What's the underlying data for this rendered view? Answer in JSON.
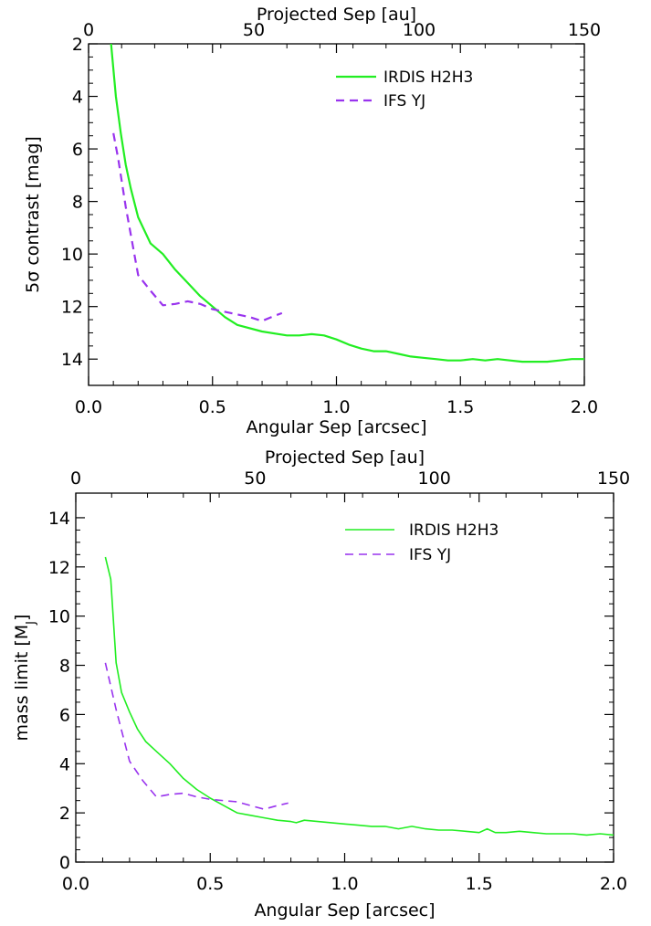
{
  "chart_data": [
    {
      "type": "line",
      "xlabel": "Angular Sep [arcsec]",
      "ylabel": "5σ contrast [mag]",
      "top_xlabel": "Projected Sep [au]",
      "xlim": [
        0.0,
        2.0
      ],
      "ylim": [
        2,
        15
      ],
      "y_inverted": true,
      "top_xlim": [
        0,
        150
      ],
      "x_ticks": [
        "0.0",
        "0.5",
        "1.0",
        "1.5",
        "2.0"
      ],
      "x_tick_values": [
        0.0,
        0.5,
        1.0,
        1.5,
        2.0
      ],
      "y_ticks": [
        "2",
        "4",
        "6",
        "8",
        "10",
        "12",
        "14"
      ],
      "y_tick_values": [
        2,
        4,
        6,
        8,
        10,
        12,
        14
      ],
      "top_ticks": [
        "0",
        "50",
        "100",
        "150"
      ],
      "top_tick_values": [
        0,
        50,
        100,
        150
      ],
      "legend_position": "top-right",
      "series": [
        {
          "name": "IRDIS H2H3",
          "color": "#22ee22",
          "dash": "solid",
          "x": [
            0.09,
            0.11,
            0.13,
            0.15,
            0.17,
            0.2,
            0.25,
            0.3,
            0.35,
            0.4,
            0.45,
            0.5,
            0.55,
            0.6,
            0.7,
            0.8,
            0.85,
            0.9,
            0.95,
            1.0,
            1.05,
            1.1,
            1.15,
            1.2,
            1.25,
            1.3,
            1.35,
            1.4,
            1.45,
            1.5,
            1.55,
            1.6,
            1.65,
            1.7,
            1.75,
            1.8,
            1.85,
            1.9,
            1.95,
            2.0
          ],
          "y": [
            1.9,
            4.0,
            5.4,
            6.6,
            7.5,
            8.6,
            9.6,
            10.0,
            10.6,
            11.1,
            11.6,
            12.0,
            12.4,
            12.7,
            12.95,
            13.1,
            13.1,
            13.05,
            13.1,
            13.25,
            13.45,
            13.6,
            13.7,
            13.7,
            13.8,
            13.9,
            13.95,
            14.0,
            14.05,
            14.05,
            14.0,
            14.05,
            14.0,
            14.05,
            14.1,
            14.1,
            14.1,
            14.05,
            14.0,
            14.0
          ]
        },
        {
          "name": "IFS YJ",
          "color": "#9933ee",
          "dash": "dashed",
          "x": [
            0.1,
            0.12,
            0.15,
            0.2,
            0.25,
            0.3,
            0.35,
            0.4,
            0.45,
            0.5,
            0.55,
            0.6,
            0.65,
            0.7,
            0.75,
            0.78
          ],
          "y": [
            5.4,
            6.4,
            8.2,
            10.8,
            11.4,
            11.95,
            11.9,
            11.8,
            11.9,
            12.1,
            12.2,
            12.3,
            12.4,
            12.55,
            12.35,
            12.25
          ]
        }
      ]
    },
    {
      "type": "line",
      "xlabel": "Angular Sep [arcsec]",
      "ylabel": "mass limit [M_J]",
      "ylabel_main": "mass limit [M",
      "ylabel_sub": "J",
      "ylabel_end": "]",
      "top_xlabel": "Projected Sep [au]",
      "xlim": [
        0.0,
        2.0
      ],
      "ylim": [
        0,
        15
      ],
      "top_xlim": [
        0,
        150
      ],
      "x_ticks": [
        "0.0",
        "0.5",
        "1.0",
        "1.5",
        "2.0"
      ],
      "x_tick_values": [
        0.0,
        0.5,
        1.0,
        1.5,
        2.0
      ],
      "y_ticks": [
        "0",
        "2",
        "4",
        "6",
        "8",
        "10",
        "12",
        "14"
      ],
      "y_tick_values": [
        0,
        2,
        4,
        6,
        8,
        10,
        12,
        14
      ],
      "top_ticks": [
        "0",
        "50",
        "100",
        "150"
      ],
      "top_tick_values": [
        0,
        50,
        100,
        150
      ],
      "legend_position": "top-right",
      "series": [
        {
          "name": "IRDIS H2H3",
          "color": "#22ee22",
          "dash": "solid",
          "x": [
            0.11,
            0.13,
            0.15,
            0.17,
            0.2,
            0.23,
            0.26,
            0.3,
            0.35,
            0.4,
            0.45,
            0.5,
            0.55,
            0.6,
            0.65,
            0.7,
            0.75,
            0.8,
            0.82,
            0.85,
            0.9,
            0.95,
            1.0,
            1.05,
            1.1,
            1.15,
            1.2,
            1.25,
            1.3,
            1.35,
            1.4,
            1.45,
            1.5,
            1.53,
            1.56,
            1.6,
            1.65,
            1.7,
            1.75,
            1.8,
            1.85,
            1.9,
            1.95,
            2.0
          ],
          "y": [
            12.4,
            11.5,
            8.1,
            6.9,
            6.1,
            5.4,
            4.9,
            4.5,
            4.0,
            3.4,
            2.95,
            2.6,
            2.3,
            2.0,
            1.9,
            1.8,
            1.7,
            1.65,
            1.6,
            1.7,
            1.65,
            1.6,
            1.55,
            1.5,
            1.45,
            1.45,
            1.35,
            1.45,
            1.35,
            1.3,
            1.3,
            1.25,
            1.2,
            1.35,
            1.2,
            1.2,
            1.25,
            1.2,
            1.15,
            1.15,
            1.15,
            1.1,
            1.15,
            1.1
          ]
        },
        {
          "name": "IFS YJ",
          "color": "#9933ee",
          "dash": "dashed",
          "x": [
            0.11,
            0.15,
            0.2,
            0.25,
            0.3,
            0.35,
            0.4,
            0.45,
            0.5,
            0.55,
            0.6,
            0.65,
            0.7,
            0.75,
            0.79
          ],
          "y": [
            8.1,
            6.2,
            4.1,
            3.3,
            2.65,
            2.75,
            2.8,
            2.65,
            2.55,
            2.5,
            2.45,
            2.3,
            2.15,
            2.3,
            2.4
          ]
        }
      ]
    }
  ]
}
